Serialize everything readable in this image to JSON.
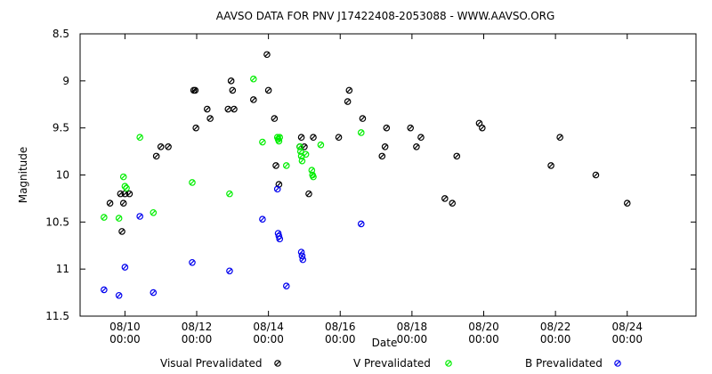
{
  "chart_data": {
    "type": "scatter",
    "title": "AAVSO DATA FOR PNV J17422408-2053088 - WWW.AAVSO.ORG",
    "xlabel": "Date",
    "ylabel": "Magnitude",
    "x_scale": "date",
    "xlim": [
      "2011-08-08T18:00",
      "2011-08-25T22:00"
    ],
    "ylim": [
      11.5,
      8.5
    ],
    "y_inverted": true,
    "y_ticks": [
      8.5,
      9,
      9.5,
      10,
      10.5,
      11,
      11.5
    ],
    "y_tick_labels": [
      "8.5",
      "9",
      "9.5",
      "10",
      "10.5",
      "11",
      "11.5"
    ],
    "x_ticks": [
      {
        "date": "2011-08-10T00:00",
        "label_top": "08/10",
        "label_bottom": "00:00"
      },
      {
        "date": "2011-08-12T00:00",
        "label_top": "08/12",
        "label_bottom": "00:00"
      },
      {
        "date": "2011-08-14T00:00",
        "label_top": "08/14",
        "label_bottom": "00:00"
      },
      {
        "date": "2011-08-16T00:00",
        "label_top": "08/16",
        "label_bottom": "00:00"
      },
      {
        "date": "2011-08-18T00:00",
        "label_top": "08/18",
        "label_bottom": "00:00"
      },
      {
        "date": "2011-08-20T00:00",
        "label_top": "08/20",
        "label_bottom": "00:00"
      },
      {
        "date": "2011-08-22T00:00",
        "label_top": "08/22",
        "label_bottom": "00:00"
      },
      {
        "date": "2011-08-24T00:00",
        "label_top": "08/24",
        "label_bottom": "00:00"
      }
    ],
    "grid": false,
    "legend_position": "bottom",
    "series": [
      {
        "name": "Visual Prevalidated",
        "color": "#000000",
        "points": [
          {
            "x": "2011-08-09T14:00",
            "y": 10.3
          },
          {
            "x": "2011-08-09T21:00",
            "y": 10.2
          },
          {
            "x": "2011-08-09T22:00",
            "y": 10.6
          },
          {
            "x": "2011-08-09T23:00",
            "y": 10.3
          },
          {
            "x": "2011-08-10T00:00",
            "y": 10.2
          },
          {
            "x": "2011-08-10T03:00",
            "y": 10.2
          },
          {
            "x": "2011-08-10T21:00",
            "y": 9.8
          },
          {
            "x": "2011-08-11T00:00",
            "y": 9.7
          },
          {
            "x": "2011-08-11T05:00",
            "y": 9.7
          },
          {
            "x": "2011-08-11T22:00",
            "y": 9.1
          },
          {
            "x": "2011-08-11T23:00",
            "y": 9.1
          },
          {
            "x": "2011-08-11T23:30",
            "y": 9.5
          },
          {
            "x": "2011-08-12T07:00",
            "y": 9.3
          },
          {
            "x": "2011-08-12T09:00",
            "y": 9.4
          },
          {
            "x": "2011-08-12T21:00",
            "y": 9.3
          },
          {
            "x": "2011-08-12T23:00",
            "y": 9.0
          },
          {
            "x": "2011-08-13T00:00",
            "y": 9.1
          },
          {
            "x": "2011-08-13T01:00",
            "y": 9.3
          },
          {
            "x": "2011-08-13T14:00",
            "y": 9.2
          },
          {
            "x": "2011-08-13T23:00",
            "y": 8.72
          },
          {
            "x": "2011-08-14T00:00",
            "y": 9.1
          },
          {
            "x": "2011-08-14T04:00",
            "y": 9.4
          },
          {
            "x": "2011-08-14T05:00",
            "y": 9.9
          },
          {
            "x": "2011-08-14T07:00",
            "y": 10.1
          },
          {
            "x": "2011-08-14T21:00",
            "y": 9.7
          },
          {
            "x": "2011-08-14T22:00",
            "y": 9.6
          },
          {
            "x": "2011-08-15T00:00",
            "y": 9.7
          },
          {
            "x": "2011-08-15T03:00",
            "y": 10.2
          },
          {
            "x": "2011-08-15T06:00",
            "y": 9.6
          },
          {
            "x": "2011-08-15T23:00",
            "y": 9.6
          },
          {
            "x": "2011-08-16T05:00",
            "y": 9.22
          },
          {
            "x": "2011-08-16T06:00",
            "y": 9.1
          },
          {
            "x": "2011-08-16T15:00",
            "y": 9.4
          },
          {
            "x": "2011-08-17T04:00",
            "y": 9.8
          },
          {
            "x": "2011-08-17T06:00",
            "y": 9.7
          },
          {
            "x": "2011-08-17T07:00",
            "y": 9.5
          },
          {
            "x": "2011-08-17T23:00",
            "y": 9.5
          },
          {
            "x": "2011-08-18T03:00",
            "y": 9.7
          },
          {
            "x": "2011-08-18T06:00",
            "y": 9.6
          },
          {
            "x": "2011-08-18T22:00",
            "y": 10.25
          },
          {
            "x": "2011-08-19T03:00",
            "y": 10.3
          },
          {
            "x": "2011-08-19T06:00",
            "y": 9.8
          },
          {
            "x": "2011-08-19T21:00",
            "y": 9.45
          },
          {
            "x": "2011-08-19T23:00",
            "y": 9.5
          },
          {
            "x": "2011-08-21T21:00",
            "y": 9.9
          },
          {
            "x": "2011-08-22T03:00",
            "y": 9.6
          },
          {
            "x": "2011-08-23T03:00",
            "y": 10.0
          },
          {
            "x": "2011-08-24T00:00",
            "y": 10.3
          }
        ]
      },
      {
        "name": "V Prevalidated",
        "color": "#00ee00",
        "points": [
          {
            "x": "2011-08-09T10:00",
            "y": 10.45
          },
          {
            "x": "2011-08-09T20:00",
            "y": 10.46
          },
          {
            "x": "2011-08-09T23:00",
            "y": 10.02
          },
          {
            "x": "2011-08-10T00:00",
            "y": 10.12
          },
          {
            "x": "2011-08-10T01:00",
            "y": 10.14
          },
          {
            "x": "2011-08-10T10:00",
            "y": 9.6
          },
          {
            "x": "2011-08-10T19:00",
            "y": 10.4
          },
          {
            "x": "2011-08-11T21:00",
            "y": 10.08
          },
          {
            "x": "2011-08-12T22:00",
            "y": 10.2
          },
          {
            "x": "2011-08-13T14:00",
            "y": 8.98
          },
          {
            "x": "2011-08-13T20:00",
            "y": 9.65
          },
          {
            "x": "2011-08-14T06:00",
            "y": 9.6
          },
          {
            "x": "2011-08-14T06:30",
            "y": 9.62
          },
          {
            "x": "2011-08-14T07:00",
            "y": 9.64
          },
          {
            "x": "2011-08-14T07:30",
            "y": 9.6
          },
          {
            "x": "2011-08-14T12:00",
            "y": 9.9
          },
          {
            "x": "2011-08-14T21:00",
            "y": 9.7
          },
          {
            "x": "2011-08-14T21:30",
            "y": 9.75
          },
          {
            "x": "2011-08-14T22:00",
            "y": 9.8
          },
          {
            "x": "2011-08-14T22:30",
            "y": 9.85
          },
          {
            "x": "2011-08-15T01:00",
            "y": 9.78
          },
          {
            "x": "2011-08-15T05:00",
            "y": 9.95
          },
          {
            "x": "2011-08-15T05:30",
            "y": 10.0
          },
          {
            "x": "2011-08-15T06:00",
            "y": 10.02
          },
          {
            "x": "2011-08-15T11:00",
            "y": 9.68
          },
          {
            "x": "2011-08-16T14:00",
            "y": 9.55
          }
        ]
      },
      {
        "name": "B Prevalidated",
        "color": "#0000ee",
        "points": [
          {
            "x": "2011-08-09T10:00",
            "y": 11.22
          },
          {
            "x": "2011-08-09T20:00",
            "y": 11.28
          },
          {
            "x": "2011-08-10T00:00",
            "y": 10.98
          },
          {
            "x": "2011-08-10T10:00",
            "y": 10.44
          },
          {
            "x": "2011-08-10T19:00",
            "y": 11.25
          },
          {
            "x": "2011-08-11T21:00",
            "y": 10.93
          },
          {
            "x": "2011-08-12T22:00",
            "y": 11.02
          },
          {
            "x": "2011-08-13T20:00",
            "y": 10.47
          },
          {
            "x": "2011-08-14T06:00",
            "y": 10.15
          },
          {
            "x": "2011-08-14T06:30",
            "y": 10.62
          },
          {
            "x": "2011-08-14T07:00",
            "y": 10.65
          },
          {
            "x": "2011-08-14T07:30",
            "y": 10.68
          },
          {
            "x": "2011-08-14T12:00",
            "y": 11.18
          },
          {
            "x": "2011-08-14T22:00",
            "y": 10.82
          },
          {
            "x": "2011-08-14T22:30",
            "y": 10.86
          },
          {
            "x": "2011-08-14T23:00",
            "y": 10.9
          },
          {
            "x": "2011-08-16T14:00",
            "y": 10.52
          }
        ]
      }
    ]
  }
}
